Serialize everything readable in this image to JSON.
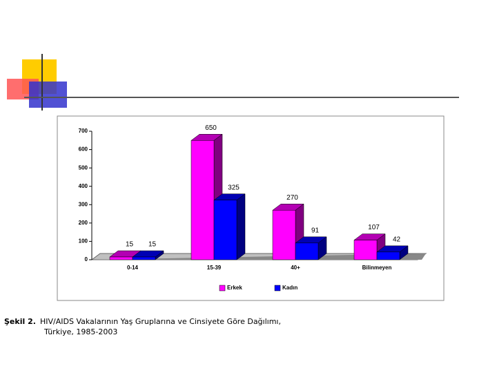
{
  "chart_data": {
    "type": "bar3d",
    "categories": [
      "0-14",
      "15-39",
      "40+",
      "Bilinmeyen"
    ],
    "series": [
      {
        "name": "Erkek",
        "color": "#ff00ff",
        "values": [
          15,
          650,
          270,
          107
        ]
      },
      {
        "name": "Kadın",
        "color": "#0000ff",
        "values": [
          15,
          325,
          91,
          42
        ]
      }
    ],
    "ylim": [
      0,
      700
    ],
    "yticks": [
      0,
      100,
      200,
      300,
      400,
      500,
      600,
      700
    ],
    "legend": "bottom",
    "caption_label": "Şekil 2.",
    "caption": [
      "HIV/AIDS Vakalarının Yaş Gruplarına ve Cinsiyete Göre Dağılımı,",
      "Türkiye, 1985-2003"
    ]
  }
}
